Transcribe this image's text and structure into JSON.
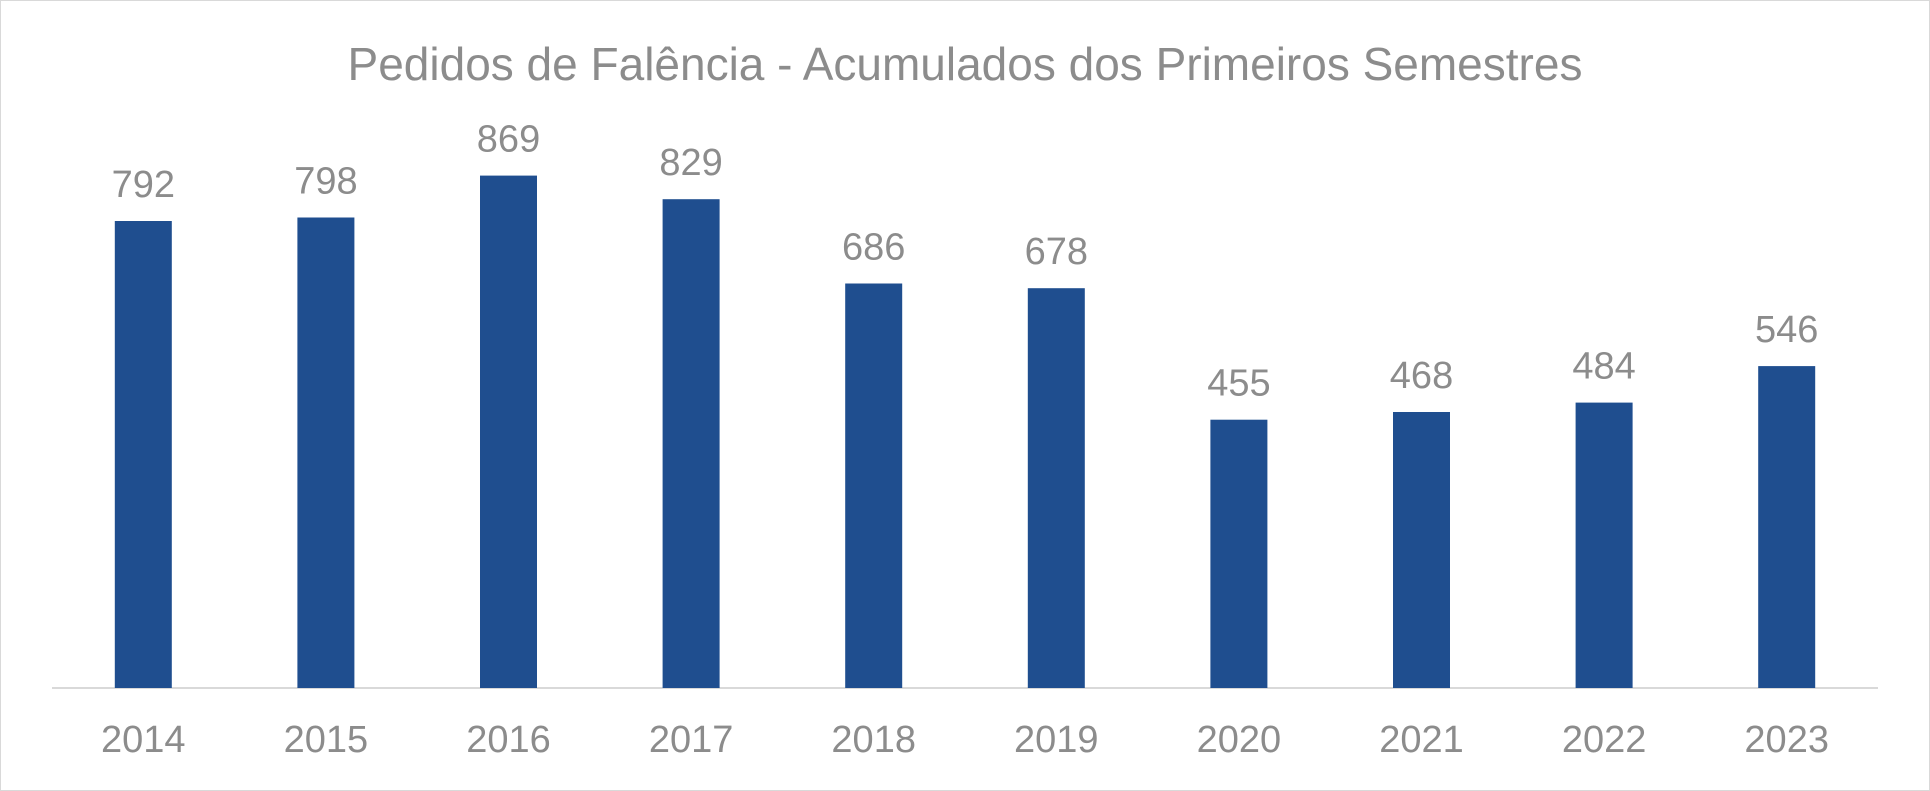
{
  "chart_data": {
    "type": "bar",
    "title": "Pedidos de Falência - Acumulados dos Primeiros Semestres",
    "categories": [
      "2014",
      "2015",
      "2016",
      "2017",
      "2018",
      "2019",
      "2020",
      "2021",
      "2022",
      "2023"
    ],
    "series": [
      {
        "values": [
          792,
          798,
          869,
          829,
          686,
          678,
          455,
          468,
          484,
          546
        ]
      }
    ],
    "xlabel": "",
    "ylabel": "",
    "ylim": [
      0,
      900
    ],
    "grid": false,
    "legend": "none",
    "data_labels": true,
    "colors": {
      "bar": "#1f4e8f",
      "text": "#8c8c8c",
      "axis": "#d9d9d9"
    }
  }
}
